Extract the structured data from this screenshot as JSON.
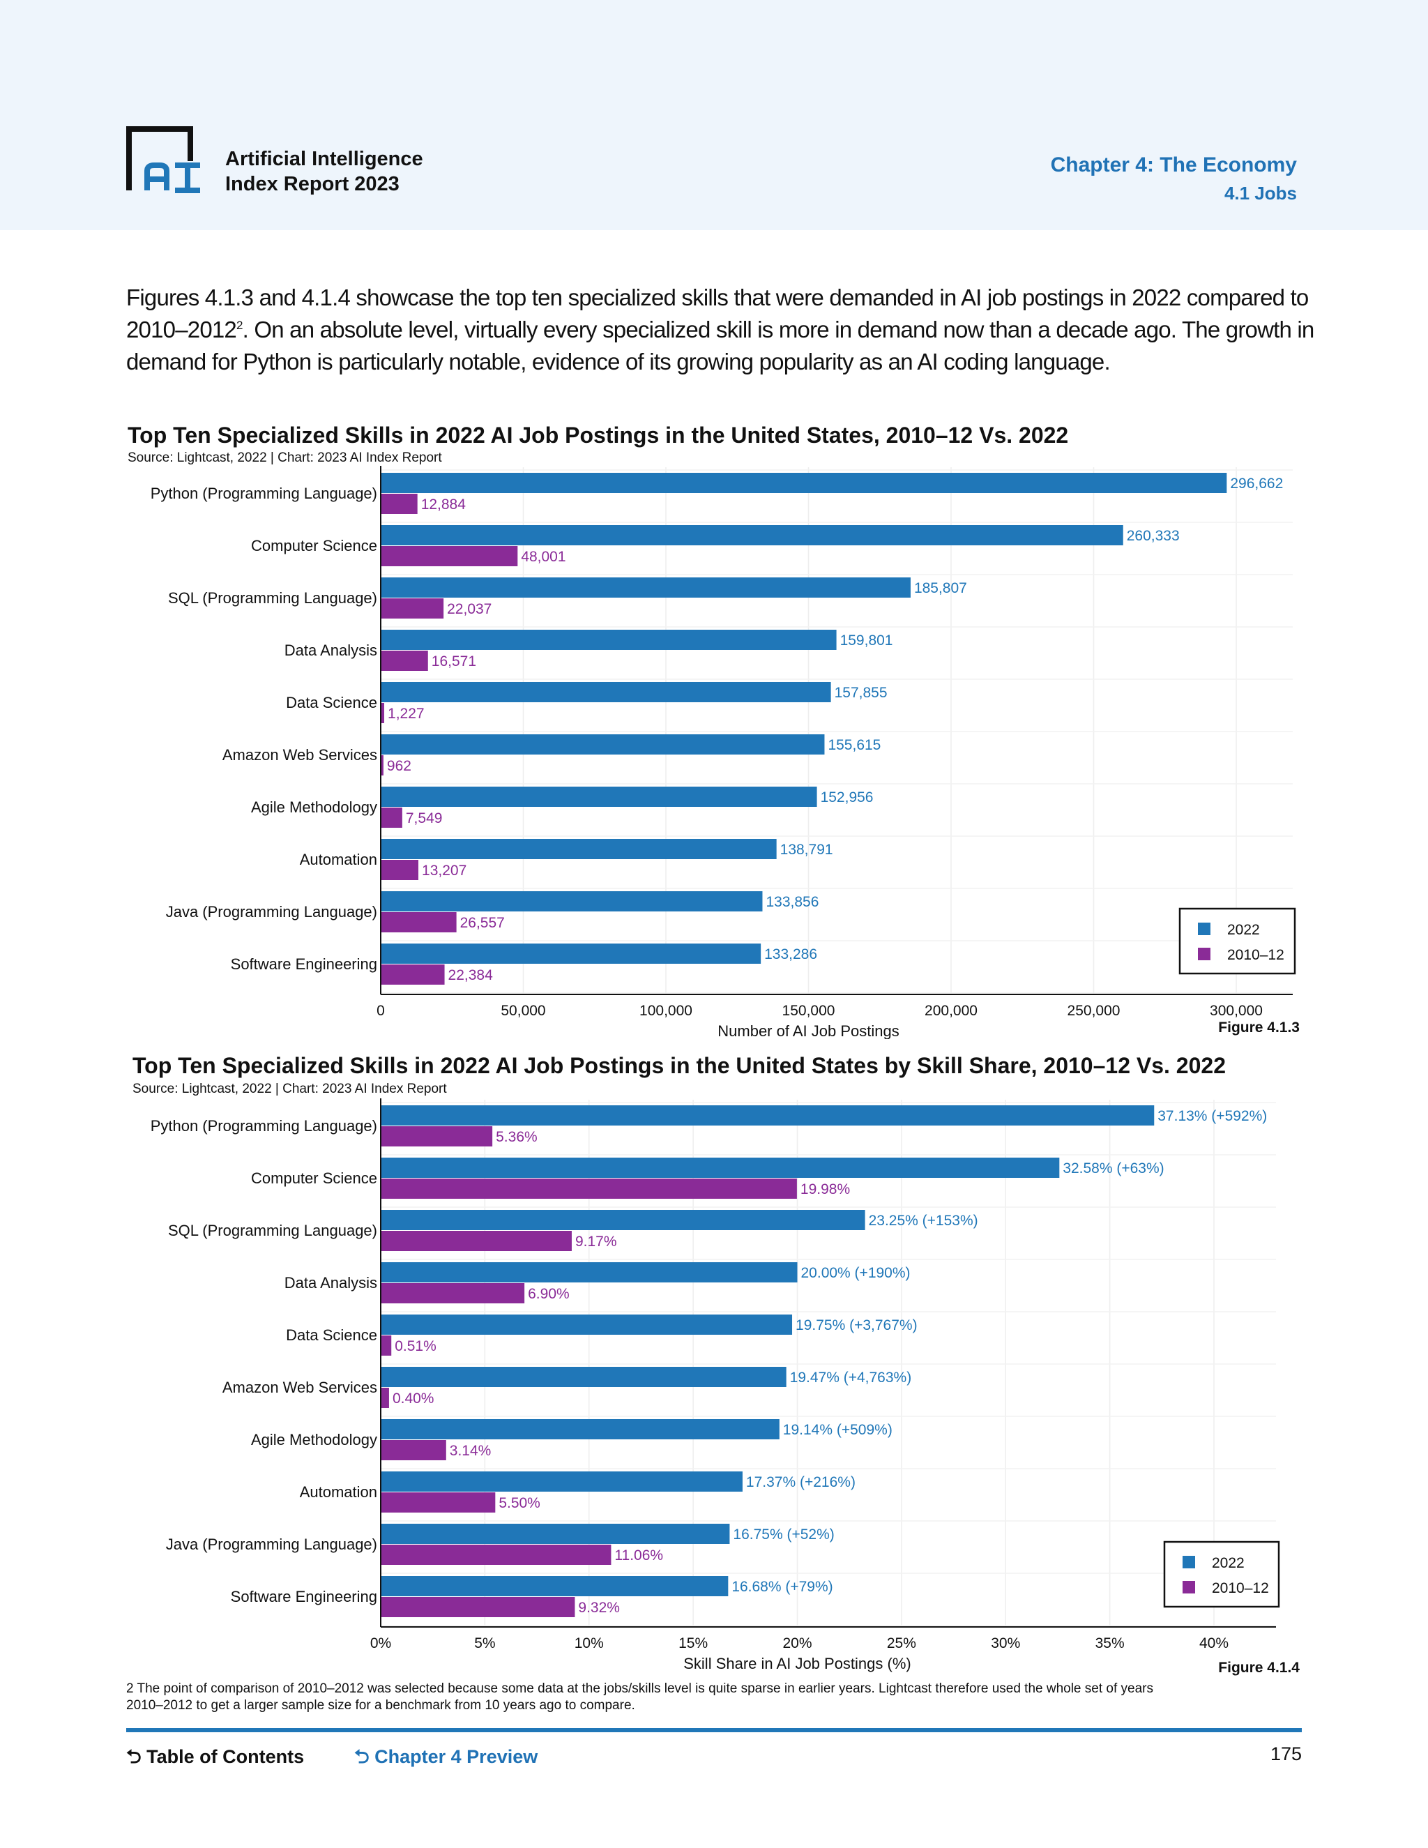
{
  "header": {
    "brand_line1": "Artificial Intelligence",
    "brand_line2": "Index Report 2023",
    "chapter": "Chapter 4: The Economy",
    "section": "4.1 Jobs",
    "logo_text": "AI"
  },
  "intro": {
    "text_before": "Figures 4.1.3 and 4.1.4 showcase the top ten specialized skills that were demanded in AI job postings in 2022 compared to 2010–2012",
    "footnote_ref": "2",
    "text_after": ". On an absolute level, virtually every specialized skill is more in demand now than a decade ago. The growth in demand for Python is particularly notable, evidence of its growing popularity as an AI coding language."
  },
  "colors": {
    "series_2022": "#2077b8",
    "series_2010_12": "#8a2b97",
    "accent": "#2072b5"
  },
  "chart_data": [
    {
      "type": "bar",
      "orientation": "horizontal",
      "title": "Top Ten Specialized Skills in 2022 AI Job Postings in the United States, 2010–12 Vs. 2022",
      "source": "Source: Lightcast, 2022 | Chart: 2023 AI Index Report",
      "figure": "Figure 4.1.3",
      "xlabel": "Number of AI Job Postings",
      "xlim": [
        0,
        300000
      ],
      "xticks": [
        "0",
        "50,000",
        "100,000",
        "150,000",
        "200,000",
        "250,000",
        "300,000"
      ],
      "grid": true,
      "legend_position": "bottom-right",
      "categories": [
        "Python (Programming Language)",
        "Computer Science",
        "SQL (Programming Language)",
        "Data Analysis",
        "Data Science",
        "Amazon Web Services",
        "Agile Methodology",
        "Automation",
        "Java (Programming Language)",
        "Software Engineering"
      ],
      "series": [
        {
          "name": "2022",
          "values": [
            296662,
            260333,
            185807,
            159801,
            157855,
            155615,
            152956,
            138791,
            133856,
            133286
          ],
          "labels": [
            "296,662",
            "260,333",
            "185,807",
            "159,801",
            "157,855",
            "155,615",
            "152,956",
            "138,791",
            "133,856",
            "133,286"
          ]
        },
        {
          "name": "2010–12",
          "values": [
            12884,
            48001,
            22037,
            16571,
            1227,
            962,
            7549,
            13207,
            26557,
            22384
          ],
          "labels": [
            "12,884",
            "48,001",
            "22,037",
            "16,571",
            "1,227",
            "962",
            "7,549",
            "13,207",
            "26,557",
            "22,384"
          ]
        }
      ]
    },
    {
      "type": "bar",
      "orientation": "horizontal",
      "title": "Top Ten Specialized Skills in 2022 AI Job Postings in the United States by Skill Share, 2010–12 Vs. 2022",
      "source": "Source: Lightcast, 2022 | Chart: 2023 AI Index Report",
      "figure": "Figure 4.1.4",
      "xlabel": "Skill Share in AI Job Postings (%)",
      "xlim": [
        0,
        40
      ],
      "xticks": [
        "0%",
        "5%",
        "10%",
        "15%",
        "20%",
        "25%",
        "30%",
        "35%",
        "40%"
      ],
      "grid": true,
      "legend_position": "bottom-right",
      "categories": [
        "Python (Programming Language)",
        "Computer Science",
        "SQL (Programming Language)",
        "Data Analysis",
        "Data Science",
        "Amazon Web Services",
        "Agile Methodology",
        "Automation",
        "Java (Programming Language)",
        "Software Engineering"
      ],
      "series": [
        {
          "name": "2022",
          "values": [
            37.13,
            32.58,
            23.25,
            20.0,
            19.75,
            19.47,
            19.14,
            17.37,
            16.75,
            16.68
          ],
          "labels": [
            "37.13% (+592%)",
            "32.58% (+63%)",
            "23.25% (+153%)",
            "20.00% (+190%)",
            "19.75% (+3,767%)",
            "19.47% (+4,763%)",
            "19.14% (+509%)",
            "17.37% (+216%)",
            "16.75% (+52%)",
            "16.68% (+79%)"
          ]
        },
        {
          "name": "2010–12",
          "values": [
            5.36,
            19.98,
            9.17,
            6.9,
            0.51,
            0.4,
            3.14,
            5.5,
            11.06,
            9.32
          ],
          "labels": [
            "5.36%",
            "19.98%",
            "9.17%",
            "6.90%",
            "0.51%",
            "0.40%",
            "3.14%",
            "5.50%",
            "11.06%",
            "9.32%"
          ]
        }
      ]
    }
  ],
  "footnote": "2 The point of comparison of 2010–2012 was selected because some data at the jobs/skills level is quite sparse in earlier years. Lightcast therefore used the whole set of years 2010–2012 to get a larger sample size for a benchmark from 10 years ago to compare.",
  "footer": {
    "toc": "Table of Contents",
    "chapter_preview": "Chapter 4 Preview",
    "page_number": "175",
    "back_icon": "return-arrow-icon"
  }
}
